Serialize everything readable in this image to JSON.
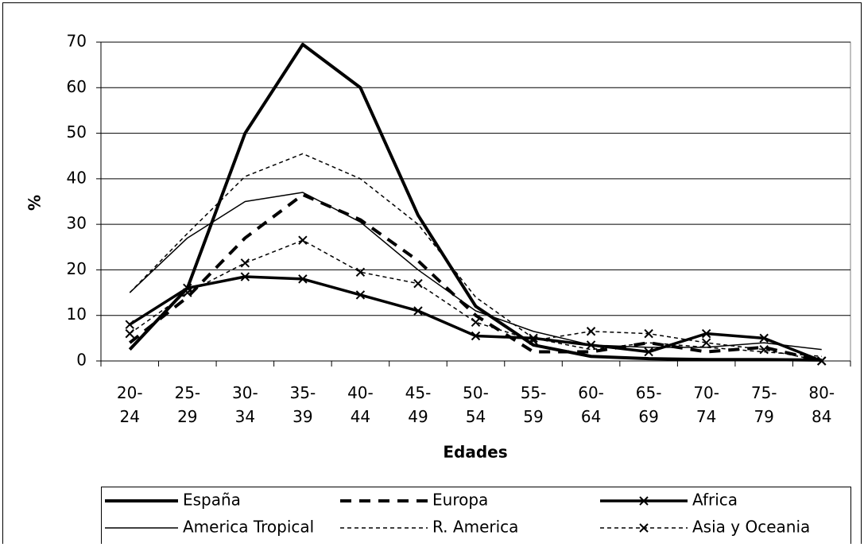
{
  "chart_data": {
    "type": "line",
    "x_label": "Edades",
    "y_label": "%",
    "categories": [
      "20-24",
      "25-29",
      "30-34",
      "35-39",
      "40-44",
      "45-49",
      "50-54",
      "55-59",
      "60-64",
      "65-69",
      "70-74",
      "75-79",
      "80-84"
    ],
    "ylim": [
      0,
      70
    ],
    "yticks": [
      0,
      10,
      20,
      30,
      40,
      50,
      60,
      70
    ],
    "grid": true,
    "series": [
      {
        "name": "España",
        "color": "#000000",
        "width": 4,
        "dash": "none",
        "marker": "none",
        "values": [
          2.5,
          16,
          50,
          69.5,
          60,
          32,
          12,
          3.5,
          1,
          0.5,
          0.3,
          0.3,
          0.2
        ]
      },
      {
        "name": "Europa",
        "color": "#000000",
        "width": 4,
        "dash": "14 10",
        "marker": "none",
        "values": [
          4,
          14,
          27,
          36.5,
          31,
          22,
          10,
          2,
          2,
          4,
          2,
          3,
          0
        ]
      },
      {
        "name": "Africa",
        "color": "#000000",
        "width": 3.5,
        "dash": "none",
        "marker": "x",
        "values": [
          8,
          16,
          18.5,
          18,
          14.5,
          11,
          5.5,
          5,
          3.5,
          2,
          6,
          5,
          0
        ]
      },
      {
        "name": "America Tropical",
        "color": "#000000",
        "width": 1.5,
        "dash": "none",
        "marker": "none",
        "values": [
          15,
          27,
          35,
          37,
          30.5,
          20,
          11,
          6.5,
          3.5,
          3,
          3,
          4,
          2.5
        ]
      },
      {
        "name": "R. America",
        "color": "#000000",
        "width": 1.5,
        "dash": "5 4",
        "marker": "none",
        "values": [
          15,
          28,
          40.5,
          45.5,
          40,
          30,
          14,
          5,
          2.5,
          4,
          3,
          2,
          1
        ]
      },
      {
        "name": "Asia y Oceania",
        "color": "#000000",
        "width": 1.5,
        "dash": "5 4",
        "marker": "x",
        "values": [
          6,
          15,
          21.5,
          26.5,
          19.5,
          17,
          8.5,
          4.5,
          6.5,
          6,
          4,
          2.5,
          0
        ]
      }
    ]
  }
}
